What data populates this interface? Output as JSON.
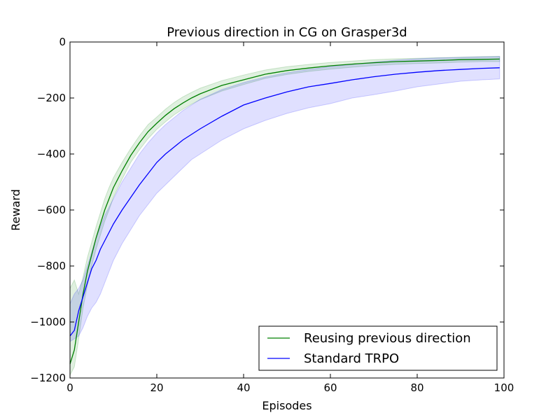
{
  "chart_data": {
    "type": "line",
    "title": "Previous direction in CG on Grasper3d",
    "xlabel": "Episodes",
    "ylabel": "Reward",
    "xlim": [
      0,
      100
    ],
    "ylim": [
      -1200,
      0
    ],
    "xticks": [
      0,
      20,
      40,
      60,
      80,
      100
    ],
    "yticks": [
      0,
      -200,
      -400,
      -600,
      -800,
      -1000,
      -1200
    ],
    "grid": false,
    "legend_position": "lower-right",
    "series": [
      {
        "name": "Reusing previous direction",
        "color": "#008000",
        "x": [
          0,
          1,
          2,
          3,
          4,
          5,
          6,
          7,
          8,
          9,
          10,
          12,
          14,
          16,
          18,
          20,
          22,
          24,
          26,
          28,
          30,
          35,
          40,
          45,
          50,
          55,
          60,
          65,
          70,
          75,
          80,
          85,
          90,
          95,
          99
        ],
        "y": [
          -1150,
          -1100,
          -1000,
          -900,
          -820,
          -760,
          -700,
          -650,
          -600,
          -560,
          -520,
          -460,
          -405,
          -360,
          -320,
          -290,
          -262,
          -238,
          -218,
          -200,
          -185,
          -155,
          -135,
          -115,
          -102,
          -93,
          -85,
          -79,
          -74,
          -70,
          -68,
          -66,
          -63,
          -62,
          -61
        ],
        "lower": [
          -1190,
          -1160,
          -1060,
          -950,
          -870,
          -800,
          -740,
          -690,
          -640,
          -600,
          -555,
          -490,
          -430,
          -385,
          -345,
          -312,
          -285,
          -260,
          -240,
          -222,
          -206,
          -175,
          -152,
          -130,
          -116,
          -105,
          -97,
          -90,
          -84,
          -80,
          -77,
          -75,
          -72,
          -70,
          -70
        ],
        "upper": [
          -880,
          -850,
          -900,
          -840,
          -770,
          -715,
          -660,
          -610,
          -560,
          -520,
          -485,
          -430,
          -380,
          -335,
          -295,
          -268,
          -240,
          -216,
          -196,
          -180,
          -165,
          -138,
          -118,
          -100,
          -88,
          -80,
          -73,
          -68,
          -63,
          -60,
          -58,
          -56,
          -54,
          -52,
          -51
        ]
      },
      {
        "name": "Standard TRPO",
        "color": "#0000ff",
        "x": [
          0,
          1,
          2,
          3,
          4,
          5,
          6,
          7,
          8,
          9,
          10,
          12,
          14,
          16,
          18,
          20,
          22,
          24,
          26,
          28,
          30,
          35,
          40,
          45,
          50,
          55,
          60,
          65,
          70,
          75,
          80,
          85,
          90,
          95,
          99
        ],
        "y": [
          -1050,
          -1030,
          -960,
          -910,
          -860,
          -810,
          -780,
          -740,
          -710,
          -680,
          -650,
          -600,
          -555,
          -510,
          -470,
          -430,
          -400,
          -375,
          -350,
          -330,
          -310,
          -265,
          -225,
          -200,
          -178,
          -160,
          -148,
          -135,
          -124,
          -115,
          -108,
          -102,
          -98,
          -94,
          -92
        ],
        "lower": [
          -1070,
          -1060,
          -1050,
          -1020,
          -980,
          -950,
          -930,
          -900,
          -860,
          -820,
          -780,
          -720,
          -670,
          -620,
          -580,
          -540,
          -510,
          -480,
          -450,
          -420,
          -400,
          -350,
          -310,
          -280,
          -255,
          -235,
          -220,
          -200,
          -188,
          -175,
          -160,
          -150,
          -140,
          -135,
          -132
        ],
        "upper": [
          -935,
          -900,
          -880,
          -850,
          -800,
          -750,
          -700,
          -660,
          -620,
          -590,
          -560,
          -500,
          -450,
          -400,
          -360,
          -325,
          -295,
          -270,
          -245,
          -225,
          -205,
          -170,
          -145,
          -125,
          -110,
          -98,
          -88,
          -80,
          -72,
          -65,
          -60,
          -57,
          -55,
          -53,
          -52
        ]
      }
    ]
  }
}
